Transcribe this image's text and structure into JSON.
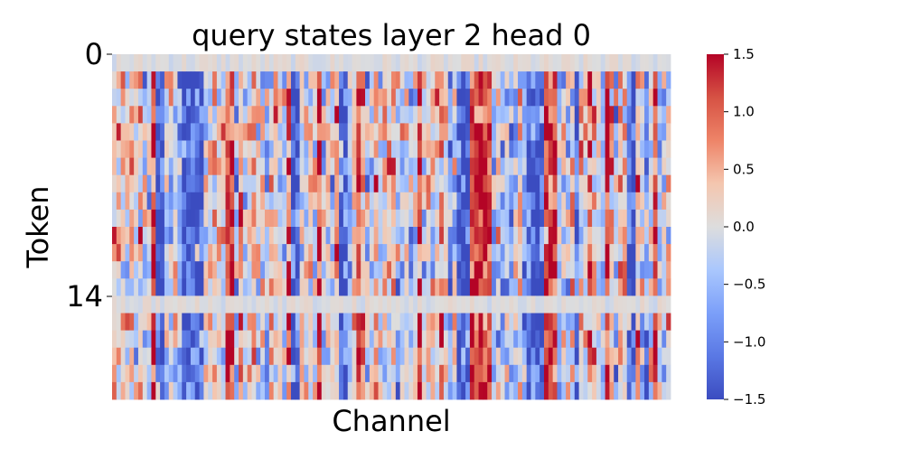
{
  "chart_data": {
    "type": "heatmap",
    "title": "query states layer 2 head 0",
    "xlabel": "Channel",
    "ylabel": "Token",
    "n_rows": 20,
    "n_cols": 128,
    "y_tick_values": [
      0,
      14
    ],
    "y_tick_labels": [
      "0",
      "14"
    ],
    "x_tick_labels": [],
    "colormap": "coolwarm",
    "vmin": -1.5,
    "vmax": 1.5,
    "colorbar_ticks": [
      1.5,
      1.0,
      0.5,
      0.0,
      -0.5,
      -1.0,
      -1.5
    ],
    "colorbar_tick_labels": [
      "1.5",
      "1.0",
      "0.5",
      "0.0",
      "−0.5",
      "−1.0",
      "−1.5"
    ],
    "colorbar_position": "right",
    "colors": {
      "low": "#3b4cc0",
      "mid": "#dddddd",
      "high": "#b40426"
    }
  }
}
